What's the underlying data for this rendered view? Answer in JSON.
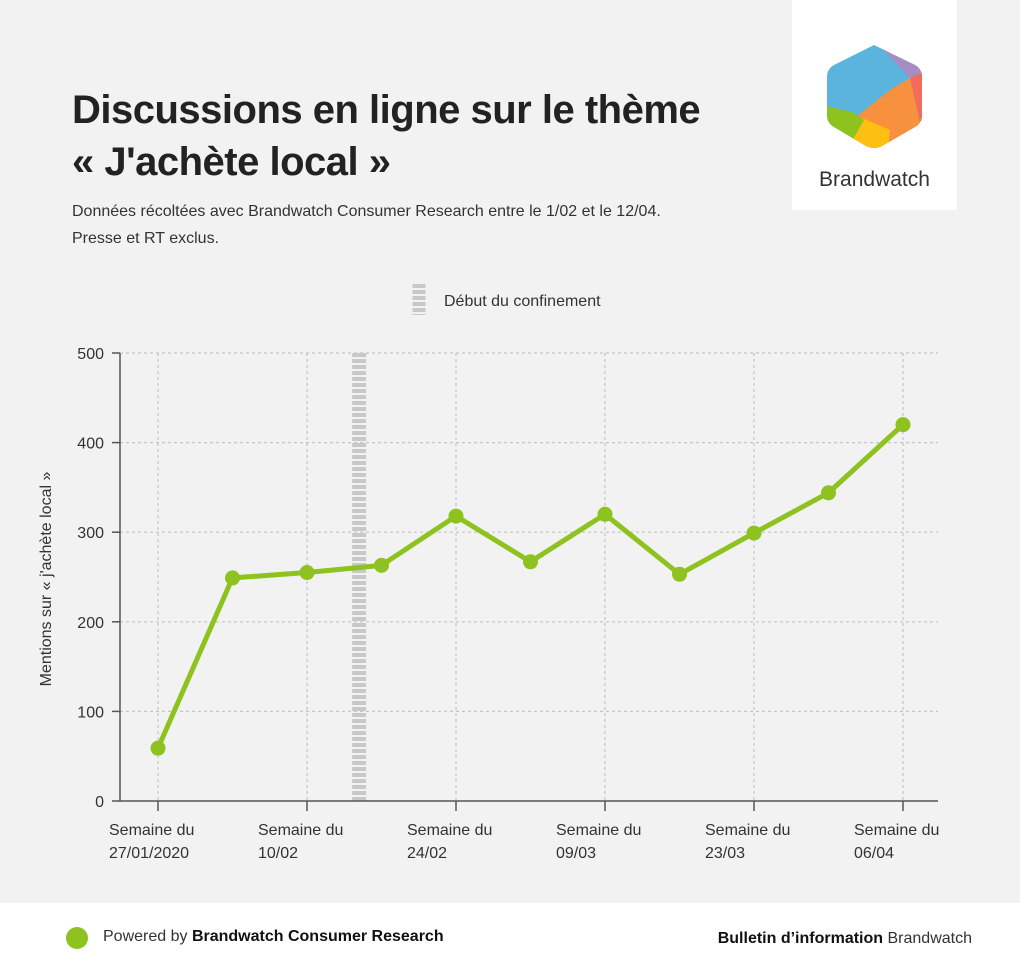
{
  "header": {
    "title_line1": "Discussions en ligne sur le thème",
    "title_line2": "« J'achète local »",
    "subtitle_line1": "Données récoltées avec Brandwatch Consumer Research entre le 1/02 et le 12/04.",
    "subtitle_line2": "Presse et RT exclus."
  },
  "logo": {
    "text": "Brandwatch",
    "colors": [
      "#5ab4de",
      "#a88cc4",
      "#f26b5b",
      "#f7913d",
      "#fdc010",
      "#8dc21f"
    ]
  },
  "footer": {
    "left_prefix": "Powered by",
    "left_bold": "Brandwatch Consumer Research",
    "right_bold": "Bulletin d’information",
    "right_suffix": "Brandwatch"
  },
  "chart_data": {
    "type": "line",
    "title": "",
    "xlabel": "",
    "ylabel": "Mentions sur « j'achète local »",
    "ylim": [
      0,
      500
    ],
    "yticks": [
      0,
      100,
      200,
      300,
      400,
      500
    ],
    "grid": true,
    "x_tick_labels": [
      [
        "Semaine du",
        "27/01/2020"
      ],
      [
        "Semaine du",
        "10/02"
      ],
      [
        "Semaine du",
        "24/02"
      ],
      [
        "Semaine du",
        "09/03"
      ],
      [
        "Semaine du",
        "23/03"
      ],
      [
        "Semaine du",
        "06/04"
      ]
    ],
    "x_tick_positions": [
      0,
      2,
      4,
      6,
      8,
      10
    ],
    "series": [
      {
        "values": [
          59,
          249,
          255,
          263,
          318,
          267,
          320,
          253,
          299,
          344,
          420
        ],
        "color": "#8dc21f"
      }
    ],
    "annotation": {
      "label": "Début du confinement",
      "at": 2.7,
      "color": "#c8c8c8"
    }
  }
}
